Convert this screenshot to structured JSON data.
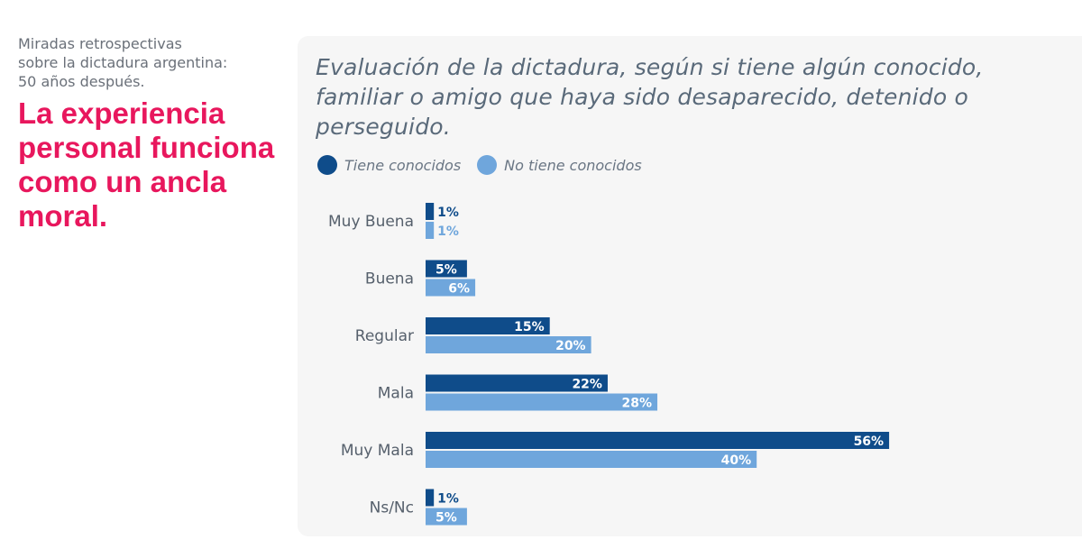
{
  "sidebar": {
    "kicker": "Miradas retrospectivas\nsobre la dictadura argentina:\n50 años después.",
    "headline": "La experiencia personal funciona como un ancla moral."
  },
  "colors": {
    "accent": "#e8175d",
    "series_dark": "#0f4c8a",
    "series_light": "#6fa6dc"
  },
  "chart_data": {
    "type": "bar",
    "orientation": "horizontal",
    "title": "Evaluación de la dictadura, según si tiene algún conocido, familiar o amigo que haya sido desaparecido, detenido o perseguido.",
    "legend_position": "top-left",
    "grid": false,
    "categories": [
      "Muy Buena",
      "Buena",
      "Regular",
      "Mala",
      "Muy Mala",
      "Ns/Nc"
    ],
    "series": [
      {
        "name": "Tiene conocidos",
        "values": [
          1,
          5,
          15,
          22,
          56,
          1
        ],
        "labels": [
          "1%",
          "5%",
          "15%",
          "22%",
          "56%",
          "1%"
        ]
      },
      {
        "name": "No tiene conocidos",
        "values": [
          1,
          6,
          20,
          28,
          40,
          5
        ],
        "labels": [
          "1%",
          "6%",
          "20%",
          "28%",
          "40%",
          "5%"
        ]
      }
    ]
  }
}
